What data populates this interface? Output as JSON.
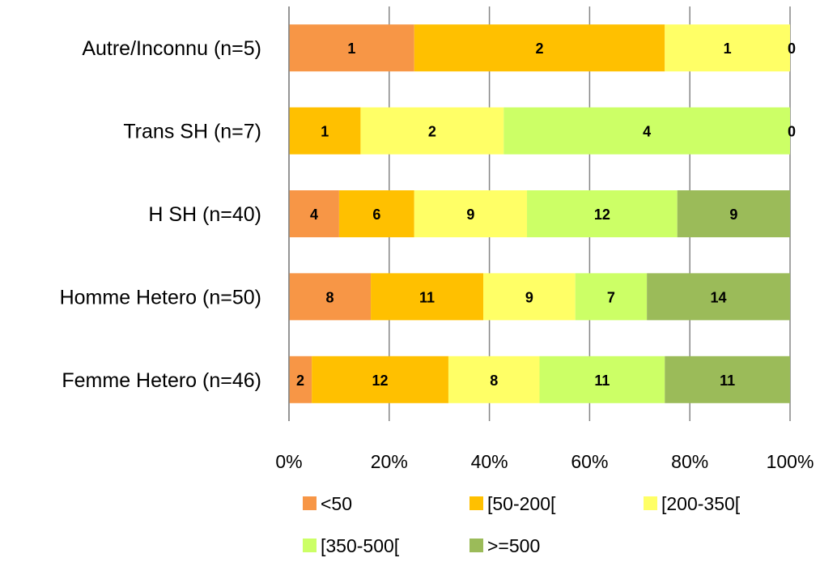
{
  "chart_data": {
    "type": "bar",
    "orientation": "horizontal",
    "stacked": "percent",
    "categories": [
      "Autre/Inconnu (n=5)",
      "Trans SH (n=7)",
      "H SH (n=40)",
      "Homme Hetero (n=50)",
      "Femme Hetero (n=46)"
    ],
    "series": [
      {
        "name": "<50",
        "color": "#f79646",
        "values": [
          1,
          0,
          4,
          8,
          2
        ]
      },
      {
        "name": "[50-200[",
        "color": "#ffc000",
        "values": [
          2,
          1,
          6,
          11,
          12
        ]
      },
      {
        "name": "[200-350[",
        "color": "#ffff66",
        "values": [
          1,
          2,
          9,
          9,
          8
        ]
      },
      {
        "name": "[350-500[",
        "color": "#ccff66",
        "values": [
          0,
          4,
          12,
          7,
          11
        ]
      },
      {
        "name": ">=500",
        "color": "#9bbb59",
        "values": [
          0,
          0,
          9,
          14,
          11
        ]
      }
    ],
    "visible_data_labels": [
      [
        1,
        2,
        1,
        0,
        null
      ],
      [
        null,
        1,
        2,
        4,
        0
      ],
      [
        4,
        6,
        9,
        12,
        9
      ],
      [
        8,
        11,
        9,
        7,
        14
      ],
      [
        2,
        12,
        8,
        11,
        11
      ]
    ],
    "x_ticks": [
      "0%",
      "20%",
      "40%",
      "60%",
      "80%",
      "100%"
    ],
    "xlim": [
      0,
      100
    ],
    "grid": "vertical",
    "legend_position": "bottom",
    "title": "",
    "xlabel": "",
    "ylabel": ""
  }
}
